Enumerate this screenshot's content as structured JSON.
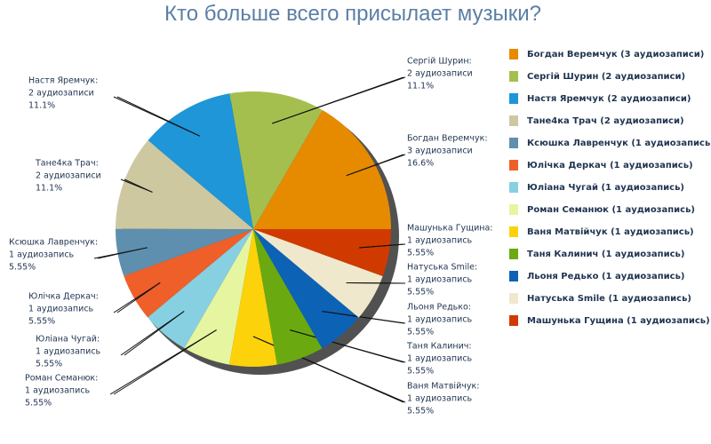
{
  "chart_data": {
    "type": "pie",
    "title": "Кто больше всего присылает музыки?",
    "categories": [
      "Богдан Веремчук (3 аудиозаписи)",
      "Сергій Шурин (2 аудиозаписи)",
      "Настя Яремчук (2 аудиозаписи)",
      "Тане4ка Трач (2 аудиозаписи)",
      "Ксюшка Лавренчук (1 аудиозапись)",
      "Юлічка Деркач (1 аудиозапись)",
      "Юліана Чугай (1 аудиозапись)",
      "Роман Семанюк (1 аудиозапись)",
      "Ваня Матвійчук (1 аудиозапись)",
      "Таня Калинич (1 аудиозапись)",
      "Льоня Редько (1 аудиозапись)",
      "Натуська Smile (1 аудиозапись)",
      "Машунька Гущина (1 аудиозапись)"
    ],
    "values": [
      16.6,
      11.1,
      11.1,
      11.1,
      5.55,
      5.55,
      5.55,
      5.55,
      5.55,
      5.55,
      5.55,
      5.55,
      5.55
    ],
    "value_labels": [
      "16.6%",
      "11.1%",
      "11.1%",
      "11.1%",
      "5.55%",
      "5.55%",
      "5.55%",
      "5.55%",
      "5.55%",
      "5.55%",
      "5.55%",
      "5.55%",
      "5.55%"
    ],
    "label_names": [
      "Богдан Веремчук:",
      "Сергій Шурин:",
      "Настя Яремчук:",
      "Тане4ка Трач:",
      "Ксюшка Лавренчук:",
      "Юлічка Деркач:",
      "Юліана Чугай:",
      "Роман Семанюк:",
      "Ваня Матвійчук:",
      "Таня Калинич:",
      "Льоня Редько:",
      "Натуська Smile:",
      "Машунька Гущина:"
    ],
    "label_counts": [
      "3 аудиозаписи",
      "2 аудиозаписи",
      "2 аудиозаписи",
      "2 аудиозаписи",
      "1 аудиозапись",
      "1 аудиозапись",
      "1 аудиозапись",
      "1 аудиозапись",
      "1 аудиозапись",
      "1 аудиозапись",
      "1 аудиозапись",
      "1 аудиозапись",
      "1 аудиозапись"
    ],
    "colors": [
      "#e68a00",
      "#a5bf4f",
      "#1e96d8",
      "#cdc8a0",
      "#5f8fae",
      "#ee5f2a",
      "#86d0e2",
      "#e6f5a0",
      "#fcd20a",
      "#6aaa10",
      "#0c62b4",
      "#f0e8cc",
      "#d03a00"
    ],
    "legend": "right"
  }
}
